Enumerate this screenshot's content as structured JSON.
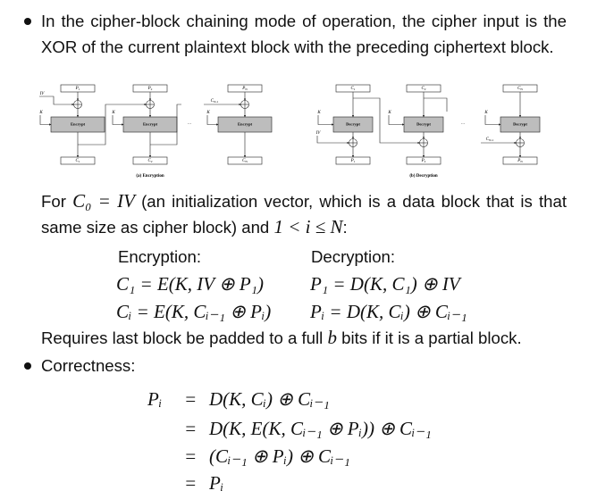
{
  "bullets": [
    {
      "text": "In the cipher-block chaining mode of operation, the cipher input is the XOR of the current plaintext block with the preceding ciphertext block."
    },
    {
      "text": "Correctness:"
    }
  ],
  "diagram": {
    "encryption": {
      "inputs": [
        {
          "base": "P",
          "sub": "1"
        },
        {
          "base": "P",
          "sub": "2"
        },
        {
          "base": "P",
          "sub": "N"
        }
      ],
      "outputs": [
        {
          "base": "C",
          "sub": "1"
        },
        {
          "base": "C",
          "sub": "2"
        },
        {
          "base": "C",
          "sub": "N"
        }
      ],
      "iv": "IV",
      "key": "K",
      "block": "Encrypt",
      "feedback": {
        "base": "C",
        "sub": "N-1"
      },
      "ellipsis": "⋯",
      "caption": "(a) Encryption"
    },
    "decryption": {
      "inputs": [
        {
          "base": "C",
          "sub": "1"
        },
        {
          "base": "C",
          "sub": "2"
        },
        {
          "base": "C",
          "sub": "N"
        }
      ],
      "outputs": [
        {
          "base": "P",
          "sub": "1"
        },
        {
          "base": "P",
          "sub": "2"
        },
        {
          "base": "P",
          "sub": "N"
        }
      ],
      "iv": "IV",
      "key": "K",
      "block": "Decrypt",
      "feedback": {
        "base": "C",
        "sub": "N-1"
      },
      "ellipsis": "⋯",
      "caption": "(b) Decryption"
    }
  },
  "intro": {
    "before": "For ",
    "math1": "C₀ = IV",
    "middle": " (an initialization vector, which is a data block that is that same size as cipher block) and ",
    "math2": "1 < i ≤ N",
    "after": ":"
  },
  "equations": {
    "headers": [
      "Encryption:",
      "Decryption:"
    ],
    "rows": [
      [
        "C₁ = E(K, IV ⊕ P₁)",
        "P₁ = D(K, C₁) ⊕ IV"
      ],
      [
        "Cᵢ = E(K, Cᵢ₋₁ ⊕ Pᵢ)",
        "Pᵢ = D(K, Cᵢ) ⊕ Cᵢ₋₁"
      ]
    ]
  },
  "note": {
    "before": "Requires last block be padded to a full ",
    "math": "b",
    "after": " bits if it is a partial block."
  },
  "derivation": {
    "lhs": "Pᵢ",
    "rows": [
      {
        "rel": "=",
        "rhs": "D(K, Cᵢ) ⊕ Cᵢ₋₁"
      },
      {
        "rel": "=",
        "rhs": "D(K, E(K, Cᵢ₋₁ ⊕ Pᵢ)) ⊕ Cᵢ₋₁"
      },
      {
        "rel": "=",
        "rhs": "(Cᵢ₋₁ ⊕ Pᵢ) ⊕ Cᵢ₋₁"
      },
      {
        "rel": "=",
        "rhs": "Pᵢ"
      }
    ]
  }
}
